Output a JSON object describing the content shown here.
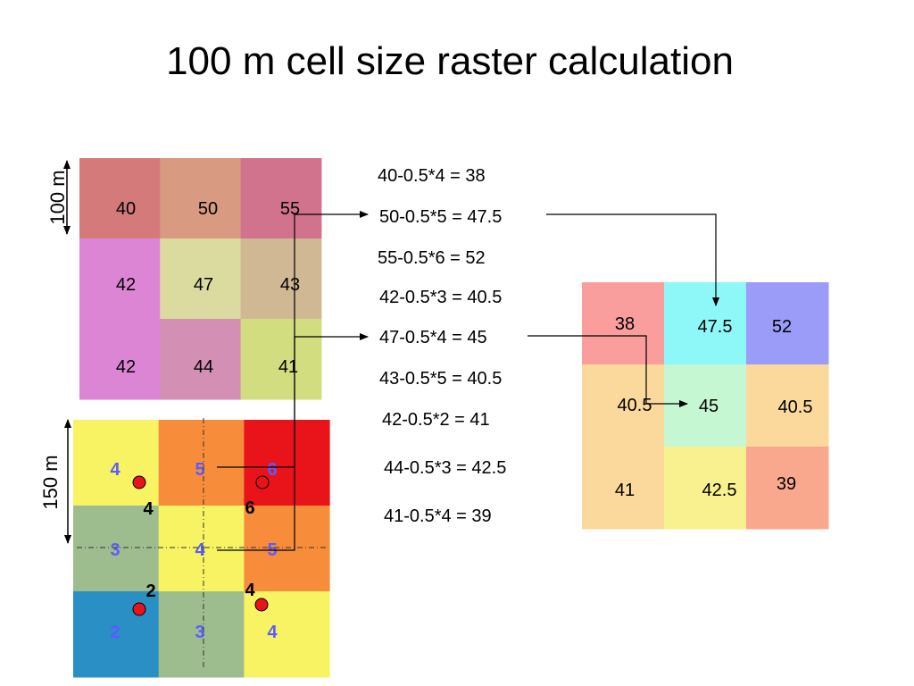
{
  "title": "100 m cell size raster calculation",
  "input_grid": {
    "dimension_label": "100 m",
    "cells": [
      {
        "value": "40",
        "color": "#d47a7a"
      },
      {
        "value": "50",
        "color": "#d99a82"
      },
      {
        "value": "55",
        "color": "#d2738e"
      },
      {
        "value": "42",
        "color": "#dd85d5"
      },
      {
        "value": "47",
        "color": "#dcdb9f"
      },
      {
        "value": "43",
        "color": "#d0b894"
      },
      {
        "value": "42",
        "color": "#dd85d5"
      },
      {
        "value": "44",
        "color": "#d48fb4"
      },
      {
        "value": "41",
        "color": "#d1dd7e"
      }
    ]
  },
  "weight_grid": {
    "dimension_label": "150 m",
    "cells": [
      {
        "value": "4",
        "color": "#f7f363"
      },
      {
        "value": "5",
        "color": "#f78c3a"
      },
      {
        "value": "6",
        "color": "#e8141a"
      },
      {
        "value": "3",
        "color": "#9ebd8e"
      },
      {
        "value": "4",
        "color": "#f7f363"
      },
      {
        "value": "5",
        "color": "#f78c3a"
      },
      {
        "value": "2",
        "color": "#2a8fc4"
      },
      {
        "value": "3",
        "color": "#9ebd8e"
      },
      {
        "value": "4",
        "color": "#f7f363"
      }
    ],
    "sample_points": [
      {
        "label": "4"
      },
      {
        "label": "6"
      },
      {
        "label": "2"
      },
      {
        "label": "4"
      }
    ],
    "point_color": "#e8141a"
  },
  "equations": [
    "40-0.5*4 = 38",
    "50-0.5*5 = 47.5",
    "55-0.5*6 = 52",
    "42-0.5*3 = 40.5",
    "47-0.5*4 = 45",
    "43-0.5*5 = 40.5",
    "42-0.5*2 = 41",
    "44-0.5*3 = 42.5",
    "41-0.5*4 = 39"
  ],
  "output_grid": {
    "cells": [
      {
        "value": "38",
        "color": "#f99d9d"
      },
      {
        "value": "47.5",
        "color": "#8ef7f7"
      },
      {
        "value": "52",
        "color": "#9a9cf7"
      },
      {
        "value": "40.5",
        "color": "#fbd99d"
      },
      {
        "value": "45",
        "color": "#c5f7d3"
      },
      {
        "value": "40.5",
        "color": "#fbd99d"
      },
      {
        "value": "41",
        "color": "#fbd99d"
      },
      {
        "value": "42.5",
        "color": "#f9f08f"
      },
      {
        "value": "39",
        "color": "#f9a88e"
      }
    ]
  }
}
